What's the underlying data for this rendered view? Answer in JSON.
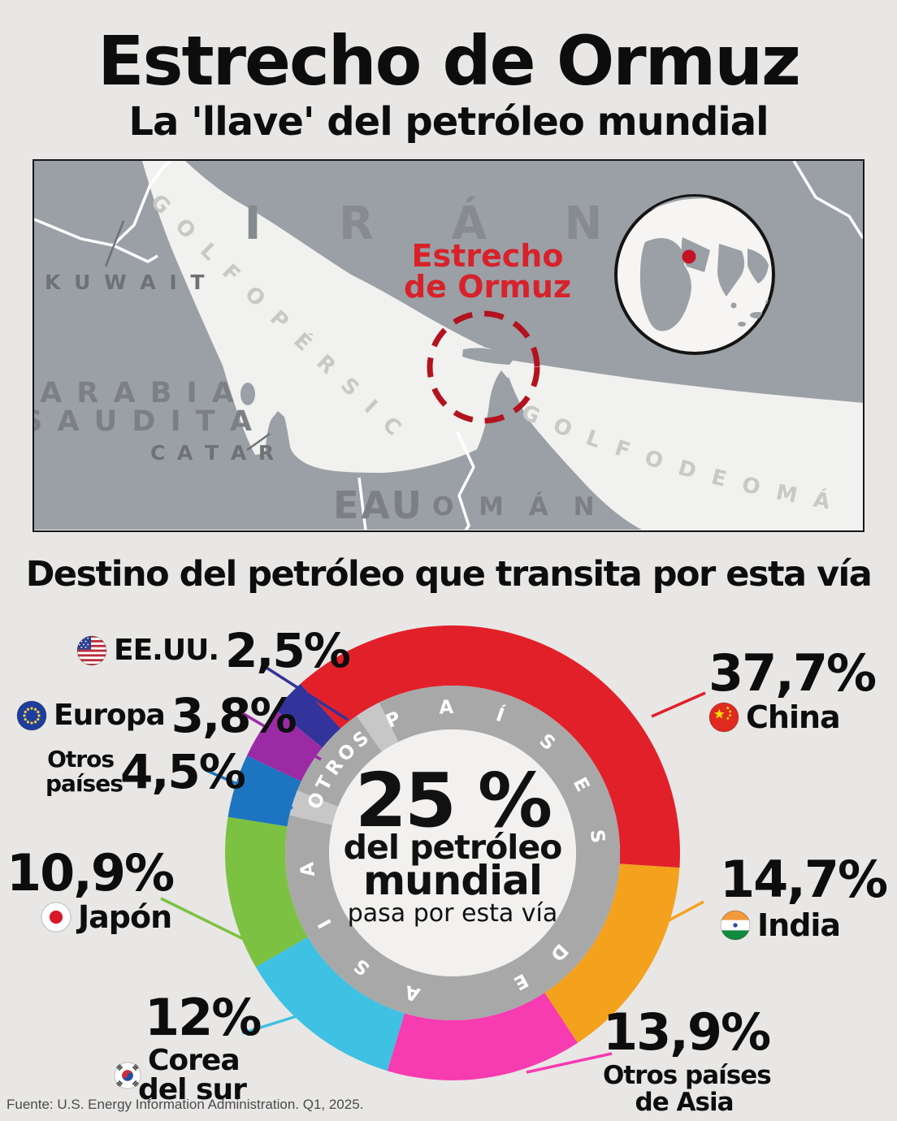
{
  "header": {
    "title": "Estrecho de Ormuz",
    "subtitle": "La 'llave' del petróleo mundial"
  },
  "section": {
    "title": "Destino del petróleo que transita por esta vía"
  },
  "map": {
    "labels": {
      "iran": "I R Á N",
      "kuwait": "K U W A I T",
      "arabia_line1": "A R A B I A",
      "arabia_line2": "S A U D I T A",
      "catar": "C A T A R",
      "eau": "EAU",
      "oman": "O M Á N",
      "golfo_persico": "G O L F O   P É R S I C O",
      "golfo_de_oman": "G O L F O   D E   O M Á N"
    },
    "callout": {
      "line1": "Estrecho",
      "line2": "de Ormuz"
    },
    "colors": {
      "land": "#9aa0a5",
      "sea": "#f1f1ef",
      "callout_red": "#d8222b",
      "dashed_circle_red": "#b2131f"
    }
  },
  "chart_data": {
    "type": "pie",
    "subtype": "donut",
    "title": "Destino del petróleo que transita por esta vía",
    "start_angle_deg": 318,
    "center": {
      "value": "25 %",
      "line1": "del petróleo",
      "line2": "mundial",
      "line3": "pasa por esta vía"
    },
    "ring_texts": [
      "PAÍSES",
      "DE",
      "ASIA",
      "OTROS"
    ],
    "ring_colors": {
      "arc": "#a8a8a8",
      "gap": "#c7c7c7",
      "letters": "#ffffff"
    },
    "segments": [
      {
        "label": "China",
        "value_label": "37,7%",
        "pct": 37.7,
        "color": "#e2202a",
        "flag": "china"
      },
      {
        "label": "India",
        "value_label": "14,7%",
        "pct": 14.7,
        "color": "#f4a11d",
        "flag": "india"
      },
      {
        "label": "Otros países de Asia",
        "label_lines": [
          "Otros países",
          "de Asia"
        ],
        "value_label": "13,9%",
        "pct": 13.9,
        "color": "#f73bb1",
        "flag": null
      },
      {
        "label": "Corea del sur",
        "label_lines": [
          "Corea",
          "del sur"
        ],
        "value_label": "12%",
        "pct": 12,
        "color": "#3ec1e3",
        "flag": "south-korea"
      },
      {
        "label": "Japón",
        "value_label": "10,9%",
        "pct": 10.9,
        "color": "#7dc142",
        "flag": "japan"
      },
      {
        "label": "Otros países",
        "label_lines": [
          "Otros",
          "países"
        ],
        "value_label": "4,5%",
        "pct": 4.5,
        "color": "#1d74c0",
        "flag": null
      },
      {
        "label": "Europa",
        "value_label": "3,8%",
        "pct": 3.8,
        "color": "#9a2ba5",
        "flag": "eu"
      },
      {
        "label": "EE.UU.",
        "value_label": "2,5%",
        "pct": 2.5,
        "color": "#32349b",
        "flag": "us"
      }
    ]
  },
  "footer": {
    "source": "Fuente: U.S. Energy Information Administration. Q1, 2025."
  }
}
